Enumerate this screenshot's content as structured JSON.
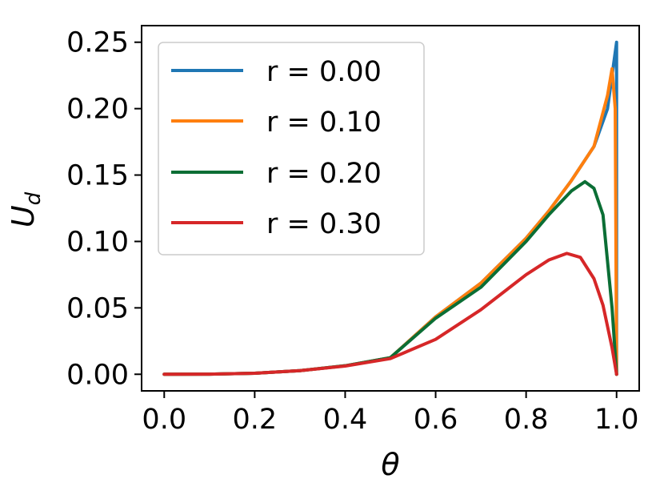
{
  "chart_data": {
    "type": "line",
    "xlabel": "θ",
    "ylabel_main": "U",
    "ylabel_sub": "d",
    "xlim": [
      -0.05,
      1.05
    ],
    "ylim": [
      -0.0125,
      0.2625
    ],
    "x_ticks": [
      "0.0",
      "0.2",
      "0.4",
      "0.6",
      "0.8",
      "1.0"
    ],
    "y_ticks": [
      "0.00",
      "0.05",
      "0.10",
      "0.15",
      "0.20",
      "0.25"
    ],
    "legend_position": "upper-left",
    "grid": false,
    "series": [
      {
        "name": "r = 0.00",
        "color": "#1f77b4",
        "x": [
          0.0,
          0.1,
          0.2,
          0.3,
          0.4,
          0.5,
          0.6,
          0.7,
          0.8,
          0.85,
          0.9,
          0.95,
          0.98,
          1.0,
          1.0
        ],
        "y": [
          0.0,
          0.0001,
          0.0008,
          0.0027,
          0.0064,
          0.0125,
          0.0432,
          0.0686,
          0.1024,
          0.1228,
          0.1458,
          0.1715,
          0.2,
          0.25,
          0.0
        ]
      },
      {
        "name": "r = 0.10",
        "color": "#ff7f0e",
        "x": [
          0.0,
          0.1,
          0.2,
          0.3,
          0.4,
          0.5,
          0.6,
          0.7,
          0.8,
          0.85,
          0.9,
          0.95,
          0.98,
          0.99,
          0.997,
          1.0
        ],
        "y": [
          0.0,
          0.0001,
          0.0008,
          0.0027,
          0.0064,
          0.0125,
          0.0432,
          0.0686,
          0.1024,
          0.1228,
          0.1458,
          0.1715,
          0.21,
          0.23,
          0.2,
          0.0
        ]
      },
      {
        "name": "r = 0.20",
        "color": "#0b6e35",
        "x": [
          0.0,
          0.1,
          0.2,
          0.3,
          0.4,
          0.5,
          0.6,
          0.7,
          0.8,
          0.85,
          0.9,
          0.93,
          0.95,
          0.97,
          0.99,
          1.0
        ],
        "y": [
          0.0,
          0.0001,
          0.0008,
          0.0027,
          0.0064,
          0.0125,
          0.0422,
          0.0655,
          0.1,
          0.12,
          0.138,
          0.145,
          0.14,
          0.12,
          0.05,
          0.0
        ]
      },
      {
        "name": "r = 0.30",
        "color": "#d62728",
        "x": [
          0.0,
          0.1,
          0.2,
          0.3,
          0.4,
          0.5,
          0.6,
          0.7,
          0.8,
          0.85,
          0.89,
          0.92,
          0.95,
          0.97,
          0.99,
          1.0
        ],
        "y": [
          0.0,
          0.0001,
          0.0008,
          0.0027,
          0.0062,
          0.0118,
          0.0263,
          0.0486,
          0.075,
          0.086,
          0.091,
          0.088,
          0.072,
          0.052,
          0.02,
          0.0
        ]
      }
    ]
  }
}
